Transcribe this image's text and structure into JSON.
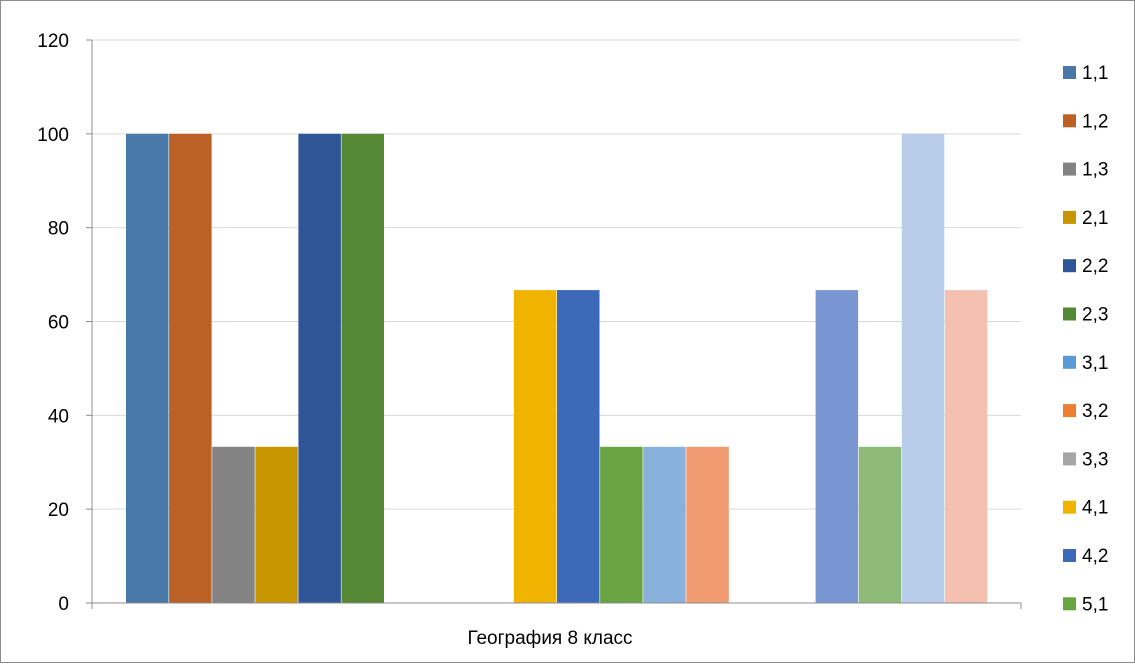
{
  "chart_data": {
    "type": "bar",
    "xlabel": "География  8 класс",
    "ylabel": "",
    "ylim": [
      0,
      120
    ],
    "yticks": [
      0,
      20,
      40,
      60,
      80,
      100,
      120
    ],
    "grid": true,
    "legend_position": "right",
    "series": [
      {
        "name": "1,1",
        "values": [
          100
        ],
        "color": "#4878a8"
      },
      {
        "name": "1,2",
        "values": [
          100
        ],
        "color": "#bb6125"
      },
      {
        "name": "1,3",
        "values": [
          33.3
        ],
        "color": "#838383"
      },
      {
        "name": "2,1",
        "values": [
          33.3
        ],
        "color": "#c69500"
      },
      {
        "name": "2,2",
        "values": [
          100
        ],
        "color": "#2f5597"
      },
      {
        "name": "2,3",
        "values": [
          100
        ],
        "color": "#548835"
      },
      {
        "name": "3,1",
        "values": [
          0
        ],
        "color": "#5b9bd5"
      },
      {
        "name": "3,2",
        "values": [
          0
        ],
        "color": "#ed7d31"
      },
      {
        "name": "3,3",
        "values": [
          0
        ],
        "color": "#a5a5a5"
      },
      {
        "name": "4,1",
        "values": [
          66.7
        ],
        "color": "#f0b400"
      },
      {
        "name": "4,2",
        "values": [
          66.7
        ],
        "color": "#3d69b9"
      },
      {
        "name": "5,1",
        "values": [
          33.3
        ],
        "color": "#6aa442"
      },
      {
        "name": "",
        "values": [
          33.3
        ],
        "color": "#88b1dc"
      },
      {
        "name": "",
        "values": [
          33.3
        ],
        "color": "#f09b72"
      },
      {
        "name": "",
        "values": [
          0
        ],
        "color": "#c9c9c9"
      },
      {
        "name": "",
        "values": [
          0
        ],
        "color": "#ffd966"
      },
      {
        "name": "",
        "values": [
          66.7
        ],
        "color": "#7a96d2"
      },
      {
        "name": "",
        "values": [
          33.3
        ],
        "color": "#8fbb78"
      },
      {
        "name": "",
        "values": [
          100
        ],
        "color": "#b8cde9"
      },
      {
        "name": "",
        "values": [
          66.7
        ],
        "color": "#f4c1b0"
      }
    ]
  }
}
